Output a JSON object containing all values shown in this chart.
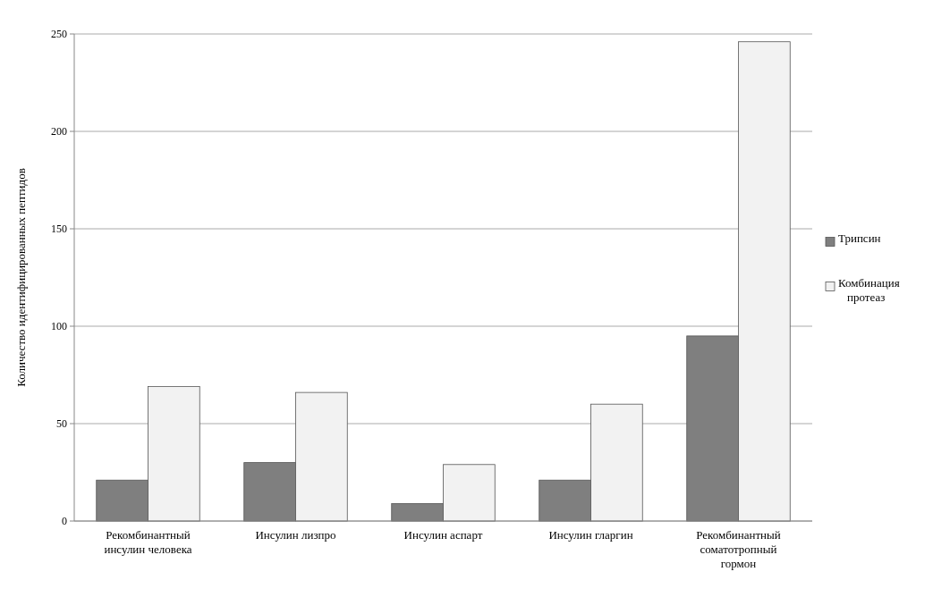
{
  "chart_data": {
    "type": "bar",
    "ylabel": "Количество идентифицированных пептидов",
    "categories": [
      "Рекомбинантный инсулин человека",
      "Инсулин лизпро",
      "Инсулин аспарт",
      "Инсулин гларгин",
      "Рекомбинантный соматотропный гормон"
    ],
    "series": [
      {
        "name": "Трипсин",
        "color": "#7f7f7f",
        "values": [
          21,
          30,
          9,
          21,
          95
        ]
      },
      {
        "name": "Комбинация протеаз",
        "color": "#f2f2f2",
        "values": [
          69,
          66,
          29,
          60,
          246
        ]
      }
    ],
    "ylim": [
      0,
      250
    ],
    "yticks": [
      0,
      50,
      100,
      150,
      200,
      250
    ],
    "grid": "y",
    "legend": "right"
  }
}
